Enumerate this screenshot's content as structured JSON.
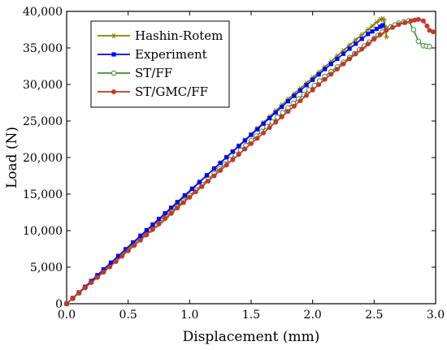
{
  "chart_data": {
    "type": "line",
    "title": "",
    "xlabel": "Displacement (mm)",
    "ylabel": "Load (N)",
    "xlim": [
      0,
      3.0
    ],
    "ylim": [
      0,
      40000
    ],
    "xticks": [
      "0.0",
      "0.5",
      "1.0",
      "1.5",
      "2.0",
      "2.5",
      "3.0"
    ],
    "yticks": [
      "0",
      "5,000",
      "10,000",
      "15,000",
      "20,000",
      "25,000",
      "30,000",
      "35,000",
      "40,000"
    ],
    "grid": false,
    "legend_position": "top-left",
    "series": [
      {
        "name": "Hashin-Rotem",
        "color": "#808000",
        "marker": "star",
        "x": [
          0,
          0.15,
          0.3,
          0.6,
          0.9,
          1.2,
          1.5,
          1.8,
          2.1,
          2.3,
          2.45,
          2.52,
          2.55,
          2.57,
          2.58,
          2.59,
          2.6
        ],
        "y": [
          0,
          2300,
          4600,
          9100,
          13700,
          18500,
          23200,
          28000,
          32400,
          35400,
          37500,
          38500,
          38900,
          39000,
          38800,
          37800,
          36500
        ]
      },
      {
        "name": "Experiment",
        "color": "#0000ff",
        "marker": "square",
        "x": [
          0,
          0.15,
          0.3,
          0.6,
          0.9,
          1.2,
          1.5,
          1.8,
          2.1,
          2.3,
          2.45,
          2.52,
          2.55,
          2.57
        ],
        "y": [
          0,
          2300,
          4700,
          9300,
          13900,
          18500,
          23100,
          27700,
          32100,
          34900,
          36900,
          37600,
          37900,
          38100
        ]
      },
      {
        "name": "ST/FF",
        "color": "#3a8a3a",
        "marker": "circle-open",
        "x": [
          0,
          0.15,
          0.3,
          0.6,
          0.9,
          1.2,
          1.5,
          1.8,
          2.1,
          2.3,
          2.5,
          2.6,
          2.7,
          2.78,
          2.82,
          2.86,
          2.9,
          2.95
        ],
        "y": [
          0,
          2200,
          4400,
          8800,
          13300,
          17800,
          22300,
          26800,
          31100,
          33700,
          36300,
          37600,
          38400,
          38700,
          37500,
          35900,
          35300,
          35200
        ]
      },
      {
        "name": "ST/GMC/FF",
        "color": "#c0392b",
        "marker": "circle",
        "x": [
          0,
          0.15,
          0.3,
          0.6,
          0.9,
          1.2,
          1.5,
          1.8,
          2.1,
          2.3,
          2.5,
          2.6,
          2.7,
          2.8,
          2.86,
          2.9,
          2.93,
          2.95,
          2.98
        ],
        "y": [
          0,
          2200,
          4300,
          8700,
          13100,
          17500,
          21900,
          26300,
          30700,
          33500,
          36200,
          37400,
          38200,
          38700,
          38900,
          38700,
          38000,
          37400,
          37200
        ]
      }
    ]
  }
}
